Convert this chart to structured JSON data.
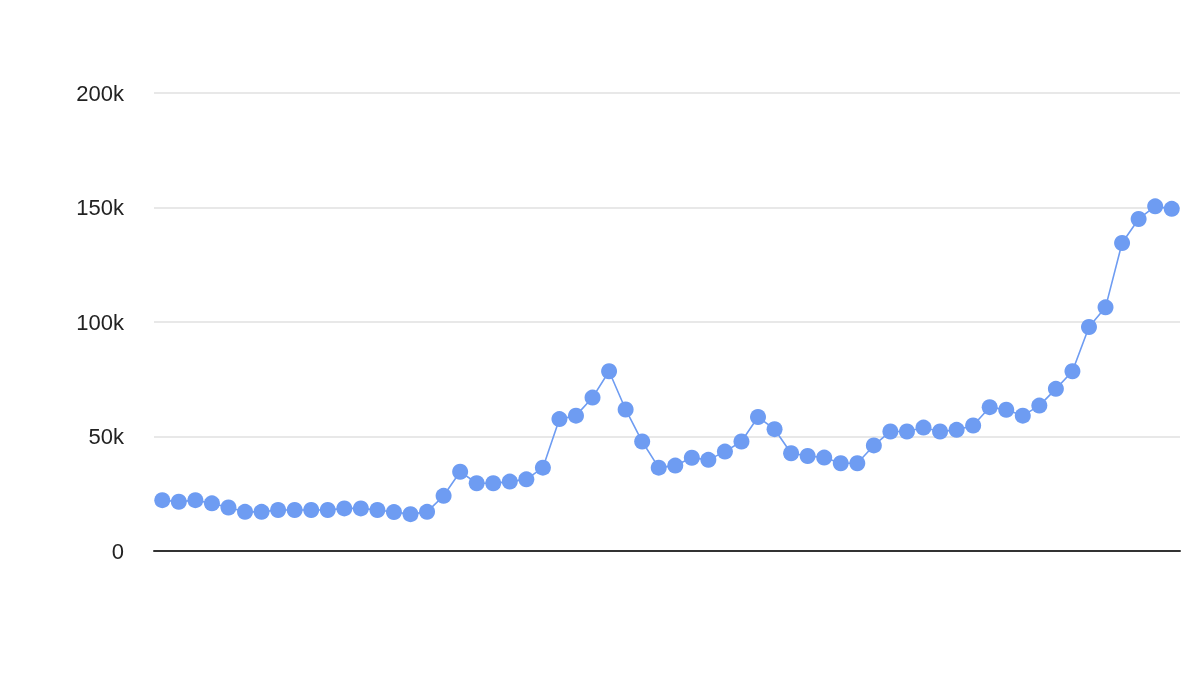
{
  "chart_data": {
    "type": "line",
    "categories": [
      null,
      null,
      null,
      null,
      null,
      null,
      null,
      null,
      null,
      null,
      null,
      null,
      null,
      null,
      null,
      null,
      null,
      null,
      null,
      null,
      null,
      null,
      null,
      null,
      null,
      null,
      null,
      null,
      null,
      null,
      null,
      null,
      null,
      null,
      null,
      null,
      null,
      null,
      null,
      null,
      null,
      null,
      null,
      null,
      null,
      null,
      null,
      null,
      null,
      null,
      null,
      null,
      null,
      null,
      null,
      null,
      null,
      null,
      null,
      null,
      null,
      null
    ],
    "series": [
      {
        "color": "#6e9cf2",
        "values": [
          22200,
          21500,
          22200,
          20800,
          19000,
          17100,
          17100,
          17900,
          17900,
          17900,
          17900,
          18600,
          18600,
          17900,
          17000,
          16100,
          17100,
          24100,
          34600,
          29600,
          29600,
          30300,
          31300,
          36400,
          57600,
          59100,
          67000,
          78500,
          61800,
          47800,
          36400,
          37300,
          40700,
          39800,
          43400,
          47800,
          58500,
          53200,
          42700,
          41500,
          40800,
          38300,
          38300,
          46100,
          52200,
          52200,
          53900,
          52200,
          52900,
          54800,
          62800,
          61700,
          59100,
          63500,
          70800,
          78500,
          97800,
          106400,
          134500,
          145000,
          150500,
          149400
        ]
      }
    ],
    "ylim": [
      0,
      200000
    ],
    "yticks": [
      0,
      {
        "value": 50000,
        "label": "50k"
      },
      {
        "value": 100000,
        "label": "100k"
      },
      {
        "value": 150000,
        "label": "150k"
      },
      {
        "value": 200000,
        "label": "200k"
      }
    ],
    "grid": "y",
    "tick_labels": "y",
    "marker": "circle",
    "line_style": "solid"
  }
}
